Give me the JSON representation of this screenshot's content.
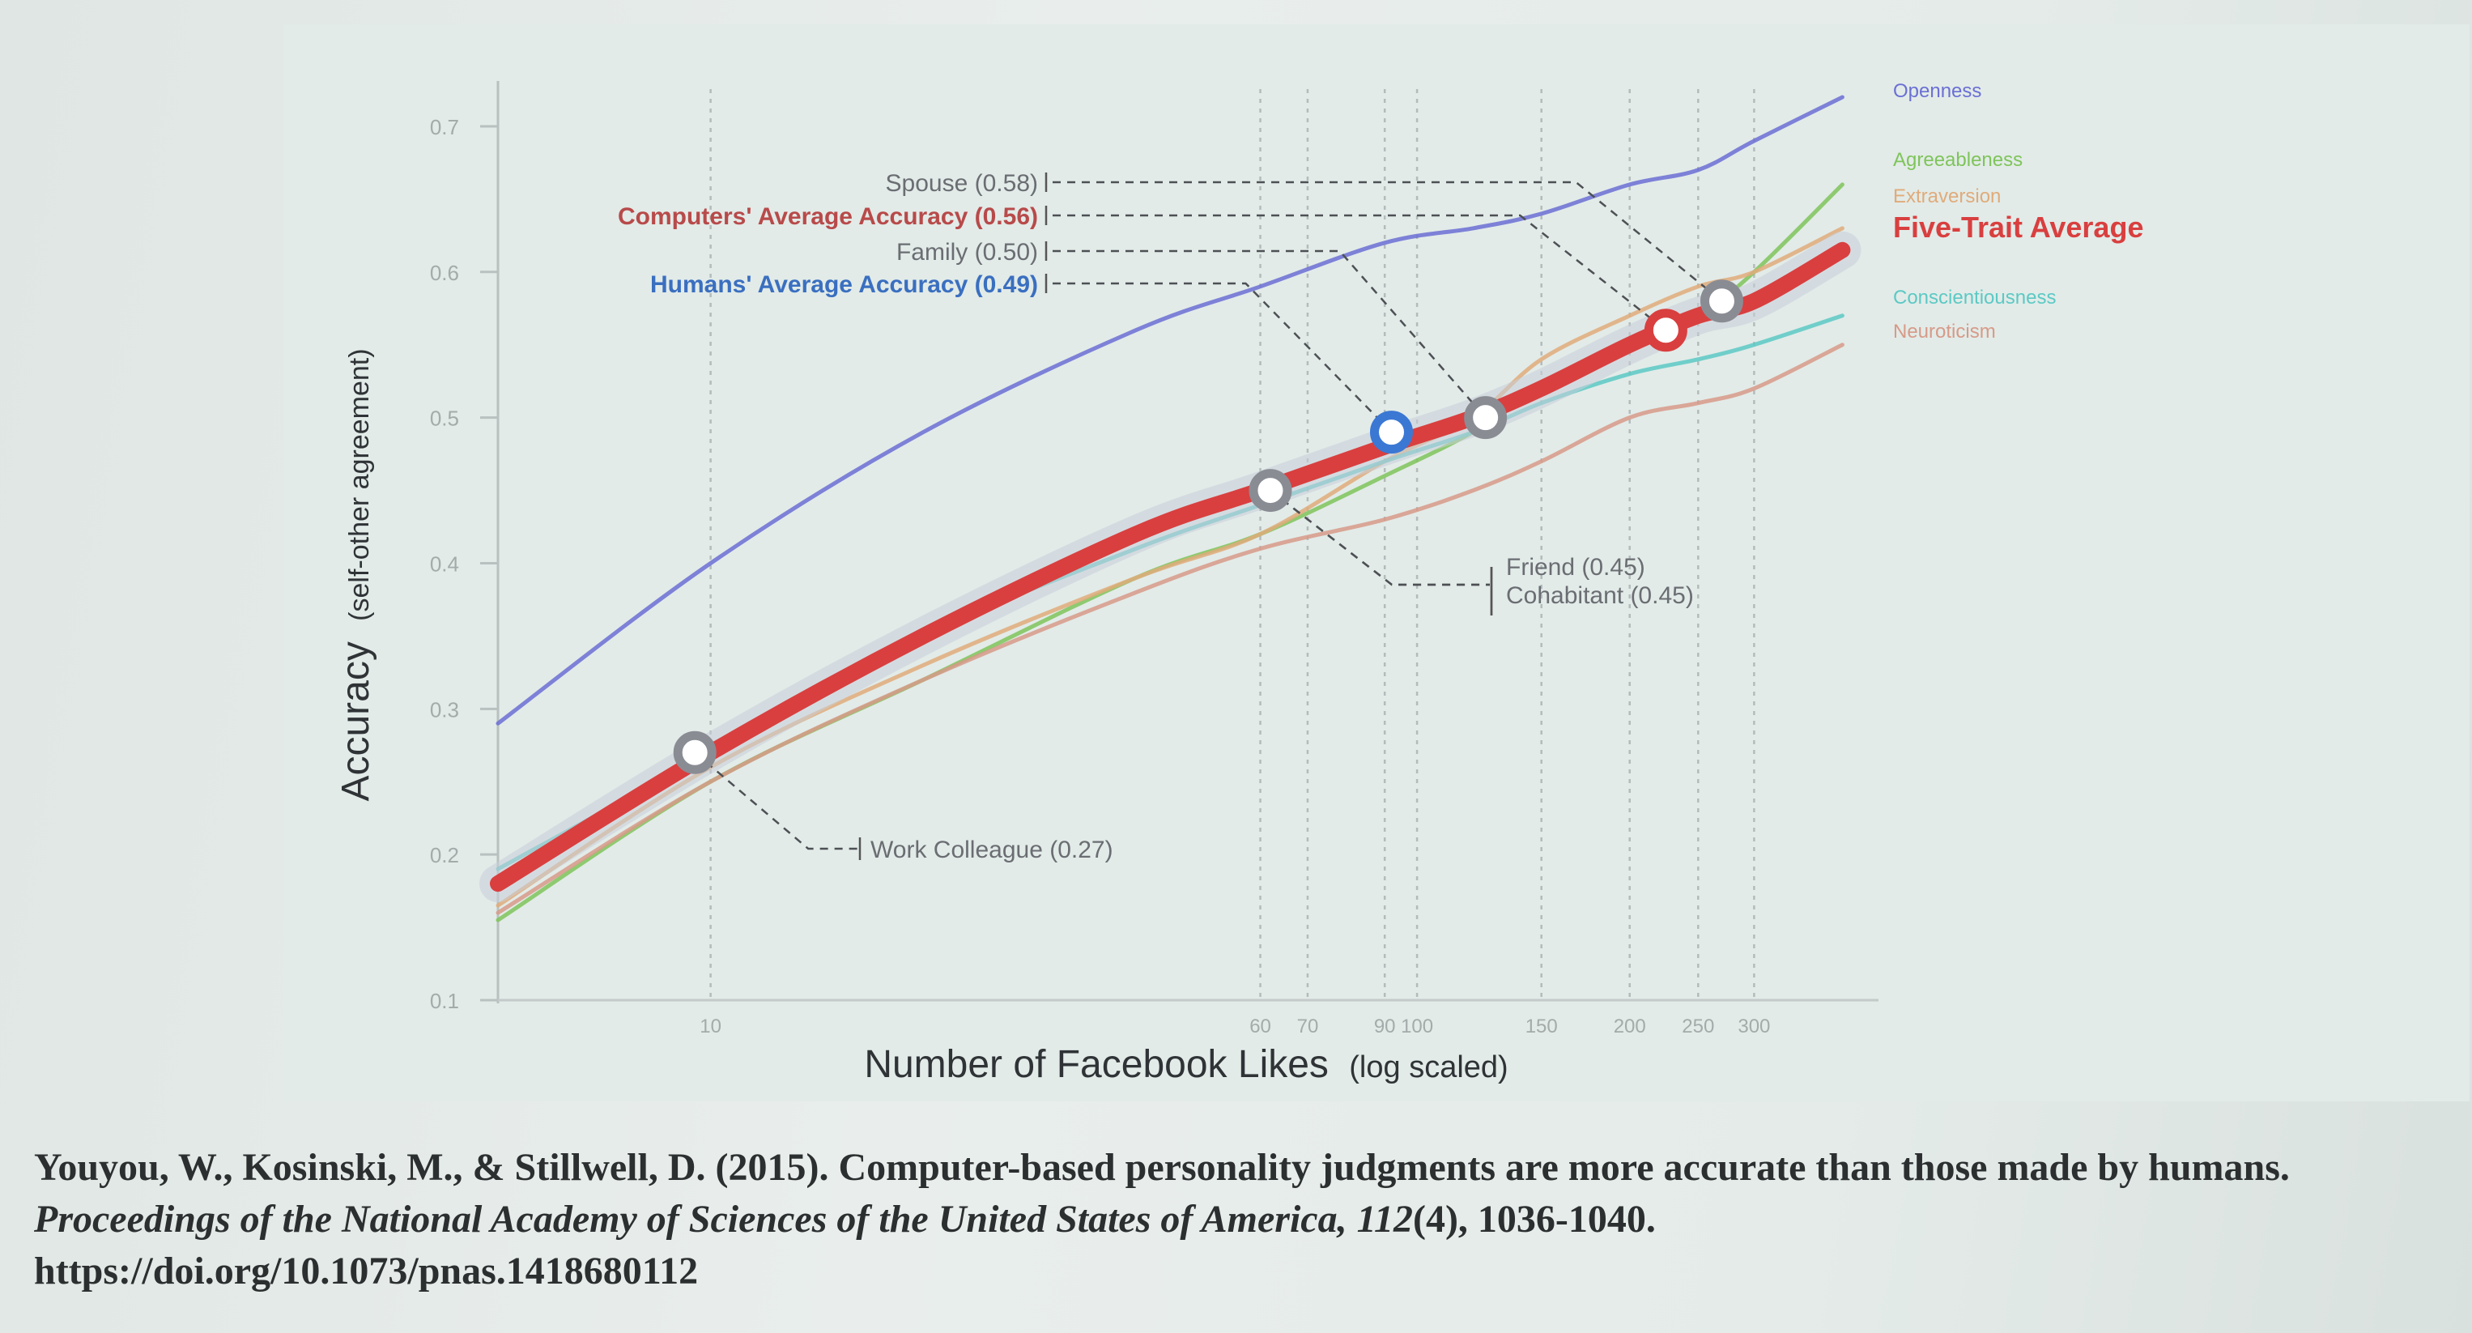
{
  "chart_data": {
    "type": "line",
    "title": "",
    "xlabel": "Number of Facebook Likes",
    "xlabel_note": "(log scaled)",
    "ylabel": "Accuracy",
    "ylabel_note": "(self-other agreement)",
    "xscale": "log",
    "xlim": [
      5,
      450
    ],
    "ylim": [
      0.1,
      0.72
    ],
    "x_ticks": [
      10,
      60,
      70,
      90,
      100,
      150,
      200,
      250,
      300
    ],
    "x_tick_labels": [
      "10",
      "60",
      "70",
      "90",
      "100",
      "150",
      "200",
      "250",
      "300"
    ],
    "y_ticks": [
      0.1,
      0.2,
      0.3,
      0.4,
      0.5,
      0.6,
      0.7
    ],
    "y_tick_labels": [
      "0.1",
      "0.2",
      "0.3",
      "0.4",
      "0.5",
      "0.6",
      "0.7"
    ],
    "series": [
      {
        "name": "Openness",
        "color": "#6b6fd4",
        "x": [
          5,
          10,
          20,
          40,
          60,
          90,
          120,
          150,
          200,
          250,
          300,
          400
        ],
        "values": [
          0.29,
          0.4,
          0.49,
          0.56,
          0.59,
          0.62,
          0.63,
          0.64,
          0.66,
          0.67,
          0.69,
          0.72
        ]
      },
      {
        "name": "Agreeableness",
        "color": "#7fc45a",
        "x": [
          5,
          10,
          20,
          40,
          60,
          90,
          120,
          150,
          200,
          250,
          300,
          400
        ],
        "values": [
          0.155,
          0.25,
          0.32,
          0.39,
          0.42,
          0.46,
          0.49,
          0.52,
          0.55,
          0.57,
          0.6,
          0.66
        ]
      },
      {
        "name": "Extraversion",
        "color": "#e0ab7a",
        "x": [
          5,
          10,
          20,
          40,
          60,
          90,
          120,
          150,
          200,
          250,
          300,
          400
        ],
        "values": [
          0.165,
          0.26,
          0.33,
          0.39,
          0.42,
          0.47,
          0.5,
          0.54,
          0.57,
          0.59,
          0.6,
          0.63
        ]
      },
      {
        "name": "Five-Trait Average",
        "color": "#d93f3f",
        "x": [
          5,
          10,
          20,
          40,
          60,
          90,
          120,
          150,
          200,
          250,
          300,
          400
        ],
        "values": [
          0.18,
          0.27,
          0.35,
          0.42,
          0.45,
          0.48,
          0.5,
          0.52,
          0.55,
          0.57,
          0.58,
          0.615
        ]
      },
      {
        "name": "Conscientiousness",
        "color": "#5cc9c4",
        "x": [
          5,
          10,
          20,
          40,
          60,
          90,
          120,
          150,
          200,
          250,
          300,
          400
        ],
        "values": [
          0.19,
          0.27,
          0.35,
          0.41,
          0.44,
          0.47,
          0.49,
          0.51,
          0.53,
          0.54,
          0.55,
          0.57
        ]
      },
      {
        "name": "Neuroticism",
        "color": "#d79a88",
        "x": [
          5,
          10,
          20,
          40,
          60,
          90,
          120,
          150,
          200,
          250,
          300,
          400
        ],
        "values": [
          0.16,
          0.25,
          0.32,
          0.38,
          0.41,
          0.43,
          0.45,
          0.47,
          0.5,
          0.51,
          0.52,
          0.55
        ]
      }
    ],
    "markers": [
      {
        "label": "Work Colleague (0.27)",
        "x": 9.5,
        "y": 0.27,
        "color": "#8a8c94",
        "label_x": 14,
        "label_y": 0.2
      },
      {
        "label": "Friend (0.45)",
        "x": 62,
        "y": 0.45,
        "color": "#8a8c94",
        "label_x": 125,
        "label_y": 0.385
      },
      {
        "label": "Cohabitant (0.45)",
        "x": 62,
        "y": 0.45,
        "color": "#8a8c94",
        "label_x": 125,
        "label_y": 0.365
      },
      {
        "label": "Humans' Average Accuracy (0.49)",
        "x": 92,
        "y": 0.49,
        "color": "#3a78d4",
        "label_x": 30,
        "label_y": 0.49,
        "label_color": "#3a6fc0"
      },
      {
        "label": "Family (0.50)",
        "x": 125,
        "y": 0.5,
        "color": "#8a8c94",
        "label_x": 30,
        "label_y": 0.5,
        "label_color": "#6a6d72"
      },
      {
        "label": "Computers' Average Accuracy (0.56)",
        "x": 225,
        "y": 0.56,
        "color": "#d93f3f",
        "label_x": 30,
        "label_y": 0.56,
        "label_color": "#b84a4a"
      },
      {
        "label": "Spouse (0.58)",
        "x": 270,
        "y": 0.58,
        "color": "#8a8c94",
        "label_x": 30,
        "label_y": 0.58,
        "label_color": "#6a6d72"
      }
    ]
  },
  "citation": {
    "authors": "Youyou, W., Kosinski, M., & Stillwell, D. (2015). Computer-based personality judgments are more accurate than those made by humans.",
    "journal": "Proceedings of the National Academy of Sciences of the United States of America, 112",
    "issue_pages": "(4), 1036-1040.",
    "doi": "https://doi.org/10.1073/pnas.1418680112"
  }
}
